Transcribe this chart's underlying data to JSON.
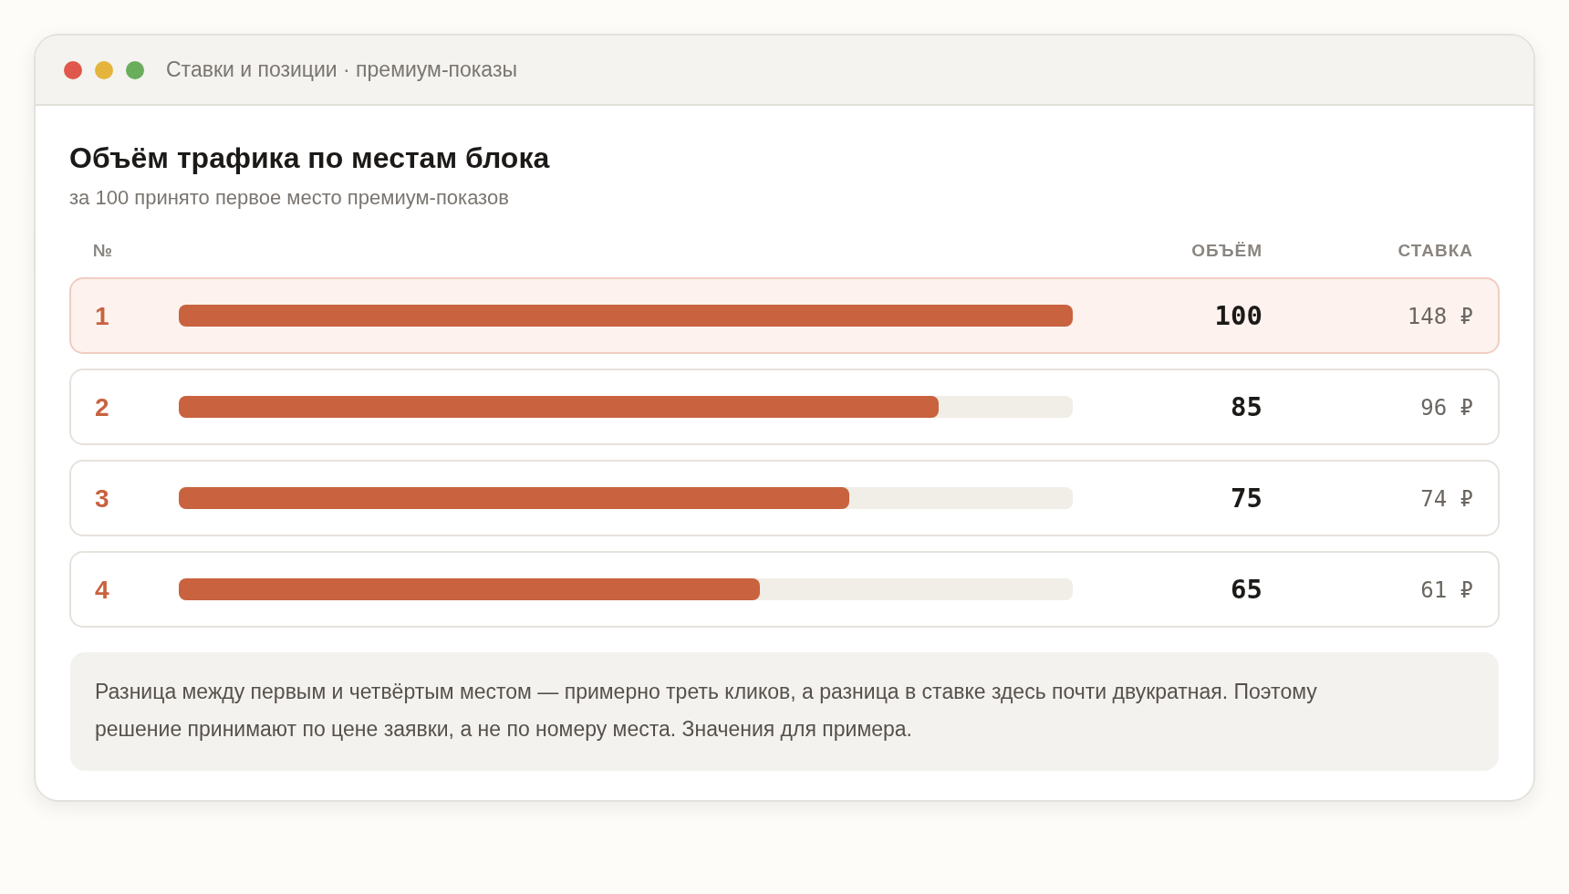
{
  "chart_data": {
    "type": "bar",
    "orientation": "horizontal",
    "title": "Объём трафика по местам блока",
    "subtitle": "за 100 принято первое место премиум-показов",
    "ylabel": "№",
    "categories": [
      "1",
      "2",
      "3",
      "4"
    ],
    "values": [
      100,
      85,
      75,
      65
    ],
    "color": "#c8623f",
    "xlim": [
      0,
      100
    ],
    "data_labels": true,
    "annotations": [
      "Ставки и позиции · премиум-показы",
      "ОБЪЁМ",
      "СТАВКА",
      "148 ₽",
      "96 ₽",
      "74 ₽",
      "61 ₽",
      "Разница между первым и четвёртым местом — примерно треть кликов, а разница в ставке здесь почти двукратная. Поэтому решение принимают по цене заявки, а не по номеру места. Значения для примера."
    ]
  }
}
